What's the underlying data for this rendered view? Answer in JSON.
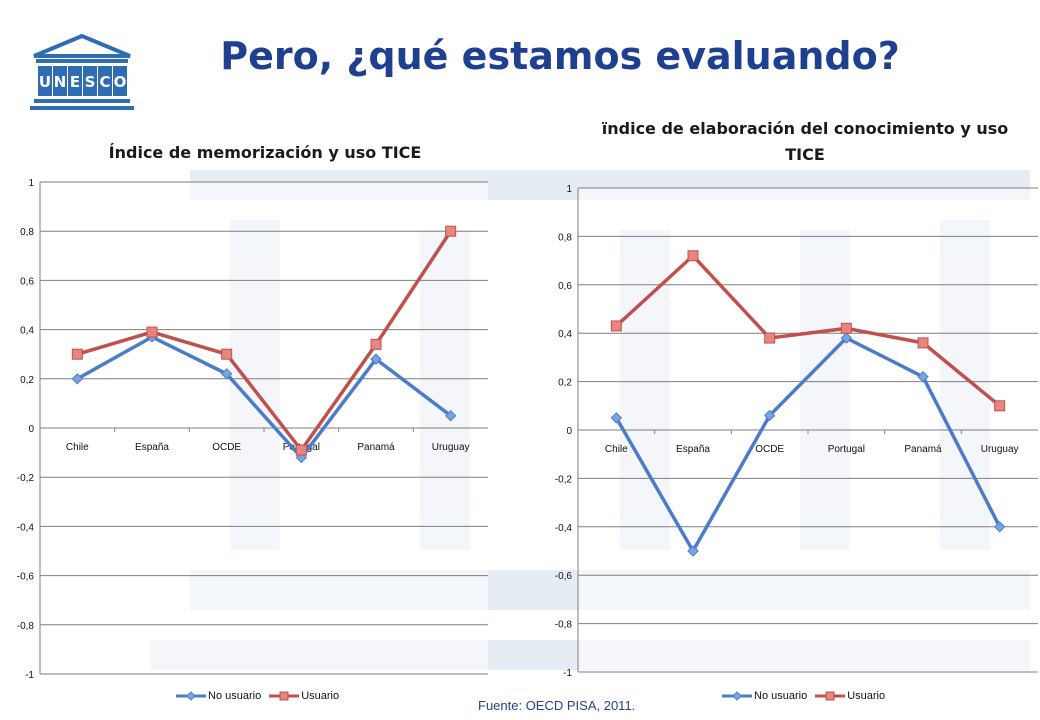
{
  "slide": {
    "title": "Pero, ¿qué estamos evaluando?",
    "logo_text": "UNESCO",
    "source": "Fuente: OECD PISA, 2011.",
    "colors": {
      "title": "#1f3f91",
      "no_usuario": "#4a7ccc",
      "usuario": "#c0504d"
    }
  },
  "chart_data": [
    {
      "type": "line",
      "title": "Índice de memorización y uso TICE",
      "categories": [
        "Chile",
        "España",
        "OCDE",
        "Portugal",
        "Panamá",
        "Uruguay"
      ],
      "ylim": [
        -1,
        1
      ],
      "yticks": [
        "1",
        "0,8",
        "0,6",
        "0,4",
        "0,2",
        "0",
        "-0,2",
        "-0,4",
        "-0,6",
        "-0,8",
        "-1"
      ],
      "grid": true,
      "legend": "bottom",
      "series": [
        {
          "name": "No usuario",
          "values": [
            0.2,
            0.37,
            0.22,
            -0.12,
            0.28,
            0.05
          ]
        },
        {
          "name": "Usuario",
          "values": [
            0.3,
            0.39,
            0.3,
            -0.09,
            0.34,
            0.8
          ]
        }
      ]
    },
    {
      "type": "line",
      "title": "ïndice de elaboración del conocimiento y uso TICE",
      "categories": [
        "Chile",
        "España",
        "OCDE",
        "Portugal",
        "Panamá",
        "Uruguay"
      ],
      "ylim": [
        -1,
        1
      ],
      "yticks": [
        "1",
        "0,8",
        "0,6",
        "0,4",
        "0,2",
        "0",
        "-0,2",
        "-0,4",
        "-0,6",
        "-0,8",
        "-1"
      ],
      "grid": true,
      "legend": "bottom",
      "series": [
        {
          "name": "No usuario",
          "values": [
            0.05,
            -0.5,
            0.06,
            0.38,
            0.22,
            -0.4
          ]
        },
        {
          "name": "Usuario",
          "values": [
            0.43,
            0.72,
            0.38,
            0.42,
            0.36,
            0.1
          ]
        }
      ]
    }
  ]
}
